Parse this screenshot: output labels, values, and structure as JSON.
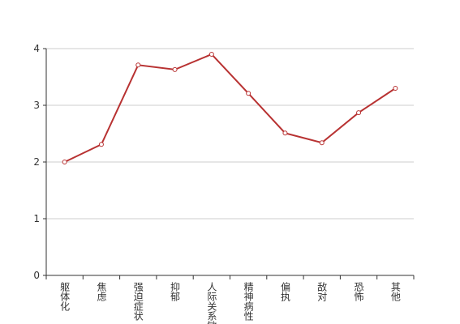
{
  "chart_data": {
    "type": "line",
    "categories": [
      "躯体化",
      "焦虑",
      "强迫症状",
      "抑郁",
      "人际关系敏感",
      "精神病性",
      "偏执",
      "敌对",
      "恐怖",
      "其他"
    ],
    "series": [
      {
        "color": "#b83232",
        "values": [
          2.0,
          2.31,
          3.71,
          3.63,
          3.9,
          3.21,
          2.51,
          2.34,
          2.87,
          3.3
        ]
      }
    ],
    "ylim": [
      0,
      4
    ],
    "yticks": [
      0,
      1,
      2,
      3,
      4
    ],
    "grid": true
  }
}
